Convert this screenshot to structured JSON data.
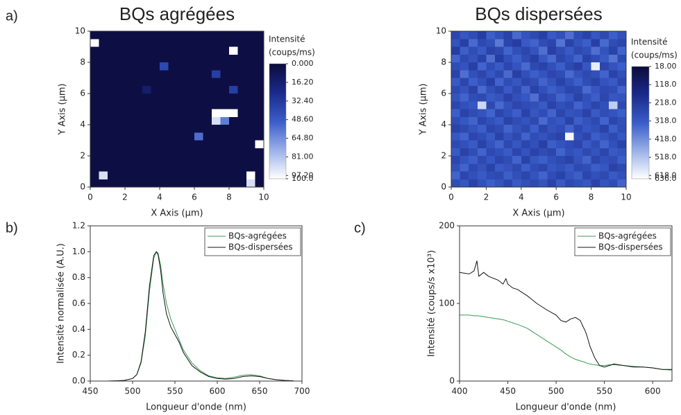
{
  "panels": [
    "a)",
    "b)",
    "c)"
  ],
  "chart_data": [
    {
      "type": "heatmap",
      "title": "BQs agrégées",
      "x_label": "X Axis (µm)",
      "y_label": "Y Axis (µm)",
      "xlim": [
        0,
        10
      ],
      "xticks": [
        0,
        2,
        4,
        6,
        8,
        10
      ],
      "ylim": [
        0,
        10
      ],
      "yticks": [
        0,
        2,
        4,
        6,
        8,
        10
      ],
      "colorbar_title": "Intensité",
      "colorbar_unit": "(coups/ms)",
      "clim": [
        0,
        100
      ],
      "colorbar_ticks": [
        {
          "value": 0,
          "label": "0.000"
        },
        {
          "value": 16.2,
          "label": "16.20"
        },
        {
          "value": 32.4,
          "label": "32.40"
        },
        {
          "value": 48.6,
          "label": "48.60"
        },
        {
          "value": 64.8,
          "label": "64.80"
        },
        {
          "value": 81,
          "label": "81.00"
        },
        {
          "value": 97.2,
          "label": "97.20"
        },
        {
          "value": 100,
          "label": "100.0"
        }
      ],
      "colormap": [
        "#0b0b3a",
        "#1a2a8a",
        "#3a5cc8",
        "#9ab0e8",
        "#ffffff"
      ],
      "z": [
        [
          3,
          3,
          3,
          3,
          3,
          3,
          3,
          3,
          3,
          3,
          3,
          3,
          3,
          3,
          3,
          3,
          3,
          3,
          3,
          3
        ],
        [
          100,
          3,
          3,
          3,
          3,
          3,
          3,
          3,
          3,
          3,
          3,
          3,
          3,
          3,
          3,
          3,
          3,
          3,
          3,
          3
        ],
        [
          3,
          3,
          3,
          3,
          3,
          3,
          3,
          3,
          3,
          3,
          3,
          3,
          3,
          3,
          3,
          3,
          100,
          3,
          3,
          3
        ],
        [
          3,
          3,
          3,
          3,
          3,
          3,
          3,
          3,
          3,
          3,
          3,
          3,
          3,
          3,
          3,
          3,
          3,
          3,
          3,
          3
        ],
        [
          3,
          3,
          3,
          3,
          3,
          3,
          3,
          3,
          40,
          3,
          3,
          3,
          3,
          3,
          3,
          3,
          3,
          3,
          3,
          3
        ],
        [
          3,
          3,
          3,
          3,
          3,
          3,
          3,
          3,
          3,
          3,
          3,
          3,
          3,
          3,
          35,
          3,
          3,
          3,
          3,
          3
        ],
        [
          3,
          3,
          3,
          3,
          3,
          3,
          3,
          3,
          3,
          3,
          3,
          3,
          3,
          3,
          3,
          3,
          3,
          3,
          3,
          3
        ],
        [
          3,
          3,
          3,
          3,
          3,
          3,
          15,
          3,
          3,
          3,
          3,
          3,
          3,
          3,
          3,
          3,
          35,
          3,
          3,
          3
        ],
        [
          3,
          3,
          3,
          3,
          3,
          3,
          3,
          3,
          3,
          3,
          3,
          3,
          3,
          3,
          3,
          3,
          3,
          3,
          3,
          3
        ],
        [
          3,
          3,
          3,
          3,
          3,
          3,
          3,
          3,
          3,
          3,
          3,
          3,
          3,
          3,
          3,
          3,
          3,
          3,
          3,
          3
        ],
        [
          3,
          3,
          3,
          3,
          3,
          3,
          3,
          3,
          3,
          3,
          3,
          3,
          3,
          3,
          100,
          100,
          100,
          3,
          3,
          3
        ],
        [
          3,
          3,
          3,
          3,
          3,
          3,
          3,
          3,
          3,
          3,
          3,
          3,
          3,
          3,
          90,
          60,
          3,
          3,
          3,
          3
        ],
        [
          3,
          3,
          3,
          3,
          3,
          3,
          3,
          3,
          3,
          3,
          3,
          3,
          3,
          3,
          3,
          3,
          3,
          3,
          3,
          3
        ],
        [
          3,
          3,
          3,
          3,
          3,
          3,
          3,
          3,
          3,
          3,
          3,
          3,
          55,
          3,
          3,
          3,
          3,
          3,
          3,
          3
        ],
        [
          3,
          3,
          3,
          3,
          3,
          3,
          3,
          3,
          3,
          3,
          3,
          3,
          3,
          3,
          3,
          3,
          3,
          3,
          3,
          100
        ],
        [
          3,
          3,
          3,
          3,
          3,
          3,
          3,
          3,
          3,
          3,
          3,
          3,
          3,
          3,
          3,
          3,
          3,
          3,
          3,
          3
        ],
        [
          3,
          3,
          3,
          3,
          3,
          3,
          3,
          3,
          3,
          3,
          3,
          3,
          3,
          3,
          3,
          3,
          3,
          3,
          3,
          3
        ],
        [
          3,
          3,
          3,
          3,
          3,
          3,
          3,
          3,
          3,
          3,
          3,
          3,
          3,
          3,
          3,
          3,
          3,
          3,
          3,
          3
        ],
        [
          3,
          90,
          3,
          3,
          3,
          3,
          3,
          3,
          3,
          3,
          3,
          3,
          3,
          3,
          3,
          3,
          3,
          3,
          100,
          3
        ],
        [
          3,
          3,
          3,
          3,
          3,
          3,
          3,
          3,
          3,
          3,
          3,
          3,
          3,
          3,
          3,
          3,
          3,
          3,
          90,
          3
        ]
      ]
    },
    {
      "type": "heatmap",
      "title": "BQs dispersées",
      "x_label": "X Axis (µm)",
      "y_label": "Y Axis (µm)",
      "xlim": [
        0,
        10
      ],
      "xticks": [
        0,
        2,
        4,
        6,
        8,
        10
      ],
      "ylim": [
        0,
        10
      ],
      "yticks": [
        0,
        2,
        4,
        6,
        8,
        10
      ],
      "colorbar_title": "Intensité",
      "colorbar_unit": "(coups/ms)",
      "clim": [
        18,
        636
      ],
      "colorbar_ticks": [
        {
          "value": 18,
          "label": "18.00"
        },
        {
          "value": 118,
          "label": "118.0"
        },
        {
          "value": 218,
          "label": "218.0"
        },
        {
          "value": 318,
          "label": "318.0"
        },
        {
          "value": 418,
          "label": "418.0"
        },
        {
          "value": 518,
          "label": "518.0"
        },
        {
          "value": 618,
          "label": "618.0"
        },
        {
          "value": 636,
          "label": "636.0"
        }
      ],
      "colormap": [
        "#0b0b3a",
        "#1a2a8a",
        "#3a5cc8",
        "#9ab0e8",
        "#ffffff"
      ],
      "z": [
        [
          260,
          310,
          280,
          230,
          330,
          290,
          250,
          350,
          300,
          270,
          240,
          320,
          290,
          360,
          280,
          250,
          310,
          270,
          330,
          290
        ],
        [
          300,
          240,
          350,
          270,
          290,
          380,
          260,
          230,
          320,
          340,
          280,
          260,
          370,
          250,
          300,
          330,
          240,
          350,
          280,
          260
        ],
        [
          230,
          330,
          280,
          320,
          250,
          270,
          340,
          290,
          260,
          300,
          360,
          240,
          280,
          320,
          270,
          290,
          360,
          300,
          250,
          340
        ],
        [
          340,
          270,
          300,
          250,
          360,
          230,
          290,
          330,
          280,
          240,
          310,
          350,
          260,
          290,
          340,
          250,
          280,
          320,
          370,
          270
        ],
        [
          280,
          300,
          240,
          340,
          280,
          320,
          260,
          300,
          350,
          270,
          250,
          290,
          330,
          270,
          240,
          310,
          600,
          260,
          300,
          330
        ],
        [
          250,
          360,
          290,
          260,
          310,
          270,
          350,
          240,
          290,
          330,
          300,
          260,
          280,
          350,
          300,
          270,
          290,
          340,
          250,
          290
        ],
        [
          320,
          260,
          330,
          290,
          240,
          340,
          280,
          310,
          260,
          280,
          340,
          300,
          250,
          290,
          330,
          280,
          250,
          300,
          320,
          260
        ],
        [
          270,
          300,
          250,
          350,
          290,
          260,
          320,
          270,
          340,
          250,
          290,
          330,
          300,
          260,
          270,
          350,
          310,
          270,
          280,
          340
        ],
        [
          300,
          340,
          280,
          270,
          320,
          300,
          250,
          290,
          310,
          360,
          260,
          280,
          340,
          310,
          250,
          290,
          330,
          260,
          310,
          300
        ],
        [
          260,
          290,
          310,
          560,
          270,
          350,
          300,
          260,
          280,
          290,
          320,
          250,
          290,
          270,
          340,
          300,
          260,
          290,
          540,
          270
        ],
        [
          330,
          250,
          280,
          300,
          340,
          260,
          290,
          330,
          250,
          310,
          280,
          340,
          260,
          300,
          290,
          250,
          320,
          280,
          300,
          330
        ],
        [
          280,
          310,
          340,
          260,
          290,
          320,
          250,
          280,
          300,
          270,
          350,
          290,
          310,
          250,
          330,
          300,
          270,
          340,
          260,
          290
        ],
        [
          250,
          270,
          300,
          330,
          260,
          280,
          340,
          300,
          270,
          330,
          260,
          300,
          280,
          340,
          270,
          310,
          290,
          250,
          330,
          280
        ],
        [
          310,
          340,
          260,
          280,
          320,
          250,
          300,
          270,
          340,
          280,
          300,
          270,
          250,
          620,
          290,
          260,
          330,
          300,
          270,
          310
        ],
        [
          270,
          290,
          320,
          250,
          300,
          340,
          270,
          310,
          260,
          290,
          240,
          330,
          300,
          280,
          260,
          320,
          280,
          340,
          290,
          250
        ],
        [
          320,
          250,
          280,
          340,
          270,
          290,
          320,
          260,
          300,
          250,
          280,
          260,
          340,
          290,
          310,
          270,
          300,
          260,
          320,
          300
        ],
        [
          260,
          300,
          330,
          270,
          310,
          260,
          280,
          340,
          250,
          310,
          330,
          290,
          270,
          250,
          300,
          340,
          260,
          290,
          280,
          330
        ],
        [
          290,
          340,
          270,
          300,
          250,
          320,
          300,
          270,
          330,
          280,
          260,
          310,
          290,
          320,
          270,
          280,
          330,
          310,
          250,
          270
        ],
        [
          340,
          260,
          290,
          320,
          280,
          270,
          330,
          290,
          260,
          300,
          340,
          280,
          250,
          300,
          330,
          260,
          290,
          270,
          320,
          290
        ],
        [
          280,
          310,
          250,
          290,
          330,
          300,
          260,
          320,
          290,
          270,
          300,
          250,
          320,
          270,
          290,
          310,
          250,
          300,
          280,
          340
        ]
      ]
    },
    {
      "type": "line",
      "x_label": "Longueur d'onde (nm)",
      "y_label": "Intensité normalisée (A.U.)",
      "xlim": [
        450,
        700
      ],
      "xticks": [
        450,
        500,
        550,
        600,
        650,
        700
      ],
      "ylim": [
        0,
        1.2
      ],
      "yticks": [
        {
          "value": 0,
          "label": "0.0"
        },
        0.2,
        0.4,
        0.6,
        0.8,
        {
          "value": 1,
          "label": "1.0"
        },
        1.2
      ],
      "legend": "upper right",
      "x": [
        470,
        480,
        490,
        500,
        505,
        510,
        515,
        520,
        525,
        528,
        530,
        533,
        536,
        540,
        545,
        550,
        555,
        560,
        570,
        580,
        590,
        600,
        610,
        620,
        630,
        640,
        650,
        660,
        670,
        680,
        690
      ],
      "series": [
        {
          "name": "BQs-agrégées",
          "color": "#3a9a50",
          "values": [
            0,
            0.002,
            0.005,
            0.02,
            0.05,
            0.14,
            0.35,
            0.7,
            0.95,
            1.0,
            0.99,
            0.9,
            0.75,
            0.6,
            0.48,
            0.4,
            0.32,
            0.24,
            0.14,
            0.08,
            0.04,
            0.025,
            0.02,
            0.03,
            0.045,
            0.05,
            0.04,
            0.02,
            0.01,
            0.005,
            0.002
          ]
        },
        {
          "name": "BQs-dispersées",
          "color": "#111111",
          "values": [
            0,
            0.002,
            0.005,
            0.02,
            0.05,
            0.15,
            0.38,
            0.74,
            0.97,
            1.0,
            0.98,
            0.86,
            0.68,
            0.52,
            0.42,
            0.36,
            0.3,
            0.22,
            0.12,
            0.07,
            0.035,
            0.02,
            0.015,
            0.02,
            0.035,
            0.04,
            0.035,
            0.02,
            0.01,
            0.005,
            0.002
          ]
        }
      ]
    },
    {
      "type": "line",
      "x_label": "Longueur d'onde (nm)",
      "y_label": "Intensité (coups/s x10³)",
      "xlim": [
        400,
        620
      ],
      "xticks": [
        400,
        450,
        500,
        550,
        600
      ],
      "ylim": [
        0,
        200
      ],
      "yticks": [
        0,
        100,
        200
      ],
      "legend": "upper right",
      "x": [
        400,
        410,
        415,
        418,
        420,
        425,
        430,
        440,
        445,
        448,
        450,
        455,
        460,
        470,
        480,
        490,
        500,
        505,
        510,
        515,
        520,
        525,
        528,
        530,
        532,
        535,
        540,
        545,
        550,
        555,
        560,
        570,
        580,
        590,
        600,
        610,
        620
      ],
      "series": [
        {
          "name": "BQs-agrégées",
          "color": "#3a9a50",
          "values": [
            85,
            85,
            84,
            84,
            84,
            83,
            82,
            80,
            79,
            78,
            77,
            75,
            73,
            68,
            60,
            52,
            44,
            40,
            35,
            31,
            28,
            26,
            25,
            24,
            23,
            22,
            21,
            20,
            20,
            21,
            21,
            20,
            19,
            18,
            17,
            15,
            14
          ]
        },
        {
          "name": "BQs-dispersées",
          "color": "#111111",
          "values": [
            140,
            138,
            142,
            155,
            135,
            140,
            135,
            130,
            125,
            132,
            125,
            120,
            118,
            110,
            100,
            92,
            85,
            78,
            76,
            80,
            82,
            78,
            70,
            65,
            58,
            45,
            30,
            20,
            18,
            20,
            22,
            20,
            18,
            18,
            17,
            15,
            15
          ]
        }
      ]
    }
  ]
}
